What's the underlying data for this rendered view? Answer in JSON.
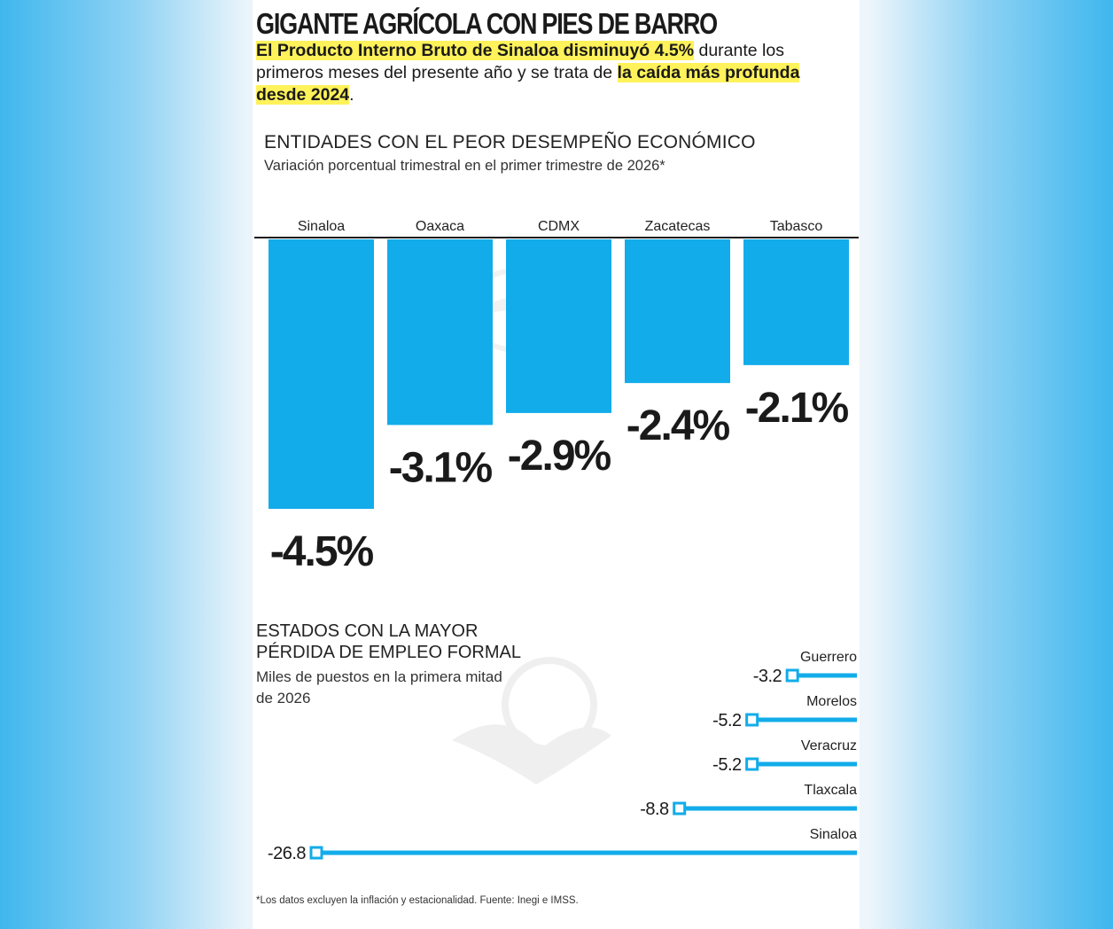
{
  "headline": "GIGANTE AGRÍCOLA CON PIES DE BARRO",
  "lead": {
    "part1_hl": "El Producto Interno Bruto de Sinaloa disminuyó 4.5%",
    "part2": " durante los primeros meses del presente año y se trata de ",
    "part3_hl": "la caída más profunda desde 2024",
    "part4": "."
  },
  "section1": {
    "title": "ENTIDADES CON EL PEOR DESEMPEÑO ECONÓMICO",
    "subtitle": "Variación porcentual trimestral en el primer trimestre de 2026*"
  },
  "section2": {
    "title": "ESTADOS CON LA MAYOR PÉRDIDA DE EMPLEO FORMAL",
    "subtitle": "Miles de puestos en la primera mitad de 2026"
  },
  "footnote": "*Los datos excluyen la inflación y estacionalidad. Fuente: Inegi e IMSS.",
  "colors": {
    "bar": "#12acea",
    "text": "#1a1a1a",
    "highlight": "#fff25a"
  },
  "chart_data": [
    {
      "type": "bar",
      "title": "ENTIDADES CON EL PEOR DESEMPEÑO ECONÓMICO",
      "subtitle": "Variación porcentual trimestral en el primer trimestre de 2026*",
      "categories": [
        "Sinaloa",
        "Oaxaca",
        "CDMX",
        "Zacatecas",
        "Tabasco"
      ],
      "values": [
        -4.5,
        -3.1,
        -2.9,
        -2.4,
        -2.1
      ],
      "value_labels": [
        "-4.5%",
        "-3.1%",
        "-2.9%",
        "-2.4%",
        "-2.1%"
      ],
      "ylim": [
        -4.5,
        0
      ],
      "grid": false
    },
    {
      "type": "bar",
      "title": "ESTADOS CON LA MAYOR PÉRDIDA DE EMPLEO FORMAL",
      "subtitle": "Miles de puestos en la primera mitad de 2026",
      "categories": [
        "Guerrero",
        "Morelos",
        "Veracruz",
        "Tlaxcala",
        "Sinaloa"
      ],
      "values": [
        -3.2,
        -5.2,
        -5.2,
        -8.8,
        -26.8
      ],
      "value_labels": [
        "-3.2",
        "-5.2",
        "-5.2",
        "-8.8",
        "-26.8"
      ],
      "xlim": [
        -26.8,
        0
      ],
      "grid": false
    }
  ]
}
